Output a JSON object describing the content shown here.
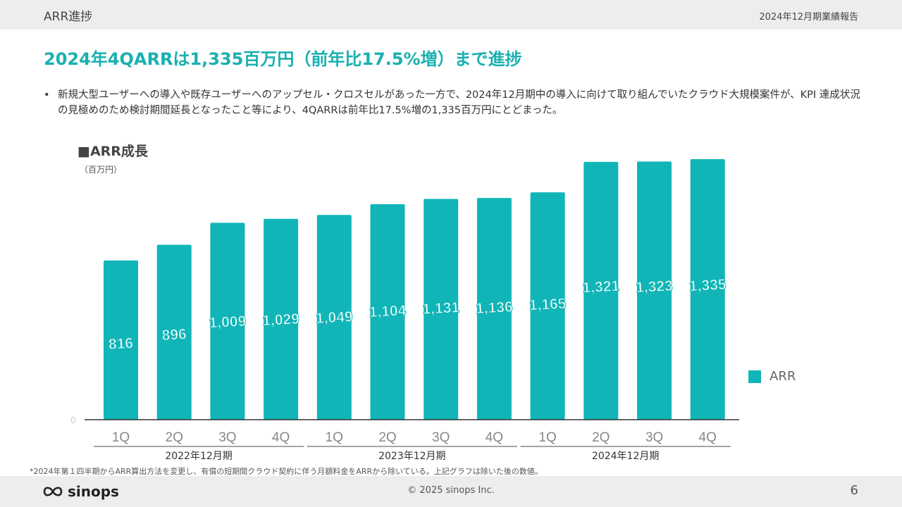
{
  "header": {
    "section_title": "ARR進捗",
    "report_title": "2024年12月期業績報告"
  },
  "headline": "2024年4QARRは1,335百万円（前年比17.5%増）まで進捗",
  "bullet": {
    "marker": "•",
    "text": "新規大型ユーザーへの導入や既存ユーザーへのアップセル・クロスセルがあった一方で、2024年12月期中の導入に向けて取り組んでいたクラウド大規模案件が、KPI 達成状況の見極めのため検討期間延長となったこと等により、4QARRは前年比17.5%増の1,335百万円にとどまった。"
  },
  "chart_data": {
    "type": "bar",
    "title": "■ARR成長",
    "unit": "（百万円）",
    "categories": [
      "1Q",
      "2Q",
      "3Q",
      "4Q",
      "1Q",
      "2Q",
      "3Q",
      "4Q",
      "1Q",
      "2Q",
      "3Q",
      "4Q"
    ],
    "groups": [
      {
        "label": "2022年12月期",
        "count": 4
      },
      {
        "label": "2023年12月期",
        "count": 4
      },
      {
        "label": "2024年12月期",
        "count": 4
      }
    ],
    "series": [
      {
        "name": "ARR",
        "values": [
          816,
          896,
          1009,
          1029,
          1049,
          1104,
          1131,
          1136,
          1165,
          1321,
          1323,
          1335
        ],
        "labels": [
          "816",
          "896",
          "1,009",
          "1,029",
          "1,049",
          "1,104",
          "1,131",
          "1,136",
          "1,165",
          "1,321",
          "1,323",
          "1,335"
        ]
      }
    ],
    "y_axis_label": "0",
    "ylim": [
      0,
      1400
    ],
    "grid": false,
    "legend": "right",
    "color": "#11b5b7"
  },
  "footnote": "*2024年第１四半期からARR算出方法を変更し、有償の短期間クラウド契約に伴う月額料金をARRから除いている。上記グラフは除いた後の数値。",
  "footer": {
    "logo_text": "sinops",
    "copyright": "© 2025 sinops Inc.",
    "page_number": "6"
  }
}
